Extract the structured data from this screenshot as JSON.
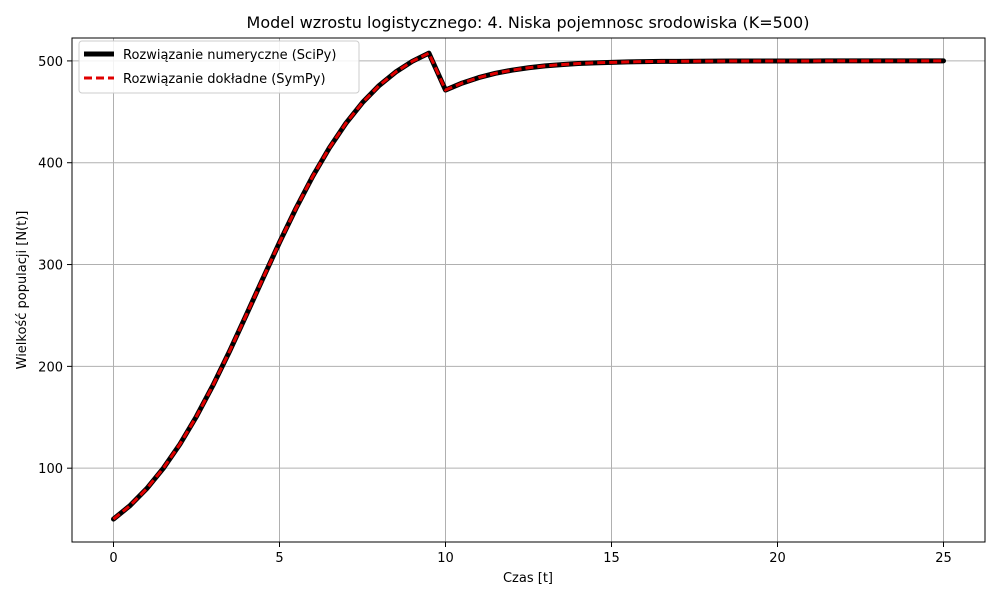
{
  "chart_data": {
    "type": "line",
    "title": "Model wzrostu logistycznego: 4. Niska pojemnosc srodowiska (K=500)",
    "xlabel": "Czas [t]",
    "ylabel": "Wielkość populacji [N(t)]",
    "xlim": [
      -1.25,
      26.25
    ],
    "ylim": [
      27.5,
      522.5
    ],
    "xticks": [
      0,
      5,
      10,
      15,
      20,
      25
    ],
    "yticks": [
      100,
      200,
      300,
      400,
      500
    ],
    "grid": true,
    "legend_position": "upper-left",
    "x": [
      0,
      0.5,
      1,
      1.5,
      2,
      2.5,
      3,
      3.5,
      4,
      4.5,
      5,
      5.5,
      6,
      6.5,
      7,
      7.5,
      8,
      8.5,
      9,
      9.5,
      10,
      10.5,
      11,
      11.5,
      12,
      12.5,
      13,
      13.5,
      14,
      14.5,
      15,
      15.5,
      16,
      16.5,
      17,
      17.5,
      18,
      18.5,
      19,
      19.5,
      20,
      20.5,
      21,
      21.5,
      22,
      22.5,
      23,
      23.5,
      24,
      24.5,
      25
    ],
    "series": [
      {
        "name": "Rozwiązanie numeryczne (SciPy)",
        "color": "#000000",
        "style": "solid",
        "values": [
          50,
          63.3,
          79.9,
          99.9,
          123.5,
          150.9,
          181.6,
          215.1,
          250.5,
          286.3,
          321.7,
          355.4,
          386.6,
          414.5,
          438.7,
          459.1,
          475.8,
          489.1,
          499.6,
          507.6,
          471.4,
          478.2,
          483.6,
          487.8,
          490.9,
          493.3,
          495.1,
          496.4,
          497.4,
          498.1,
          498.6,
          499.0,
          499.3,
          499.5,
          499.6,
          499.7,
          499.8,
          499.85,
          499.9,
          499.92,
          499.94,
          499.96,
          499.97,
          499.98,
          499.98,
          499.99,
          499.99,
          499.99,
          499.99,
          500.0,
          500.0
        ]
      },
      {
        "name": "Rozwiązanie dokładne (SymPy)",
        "color": "#e00000",
        "style": "dashed",
        "values": [
          50,
          63.3,
          79.9,
          99.9,
          123.5,
          150.9,
          181.6,
          215.1,
          250.5,
          286.3,
          321.7,
          355.4,
          386.6,
          414.5,
          438.7,
          459.1,
          475.8,
          489.1,
          499.6,
          507.6,
          471.4,
          478.2,
          483.6,
          487.8,
          490.9,
          493.3,
          495.1,
          496.4,
          497.4,
          498.1,
          498.6,
          499.0,
          499.3,
          499.5,
          499.6,
          499.7,
          499.8,
          499.85,
          499.9,
          499.92,
          499.94,
          499.96,
          499.97,
          499.98,
          499.98,
          499.99,
          499.99,
          499.99,
          499.99,
          500.0,
          500.0
        ]
      }
    ]
  }
}
